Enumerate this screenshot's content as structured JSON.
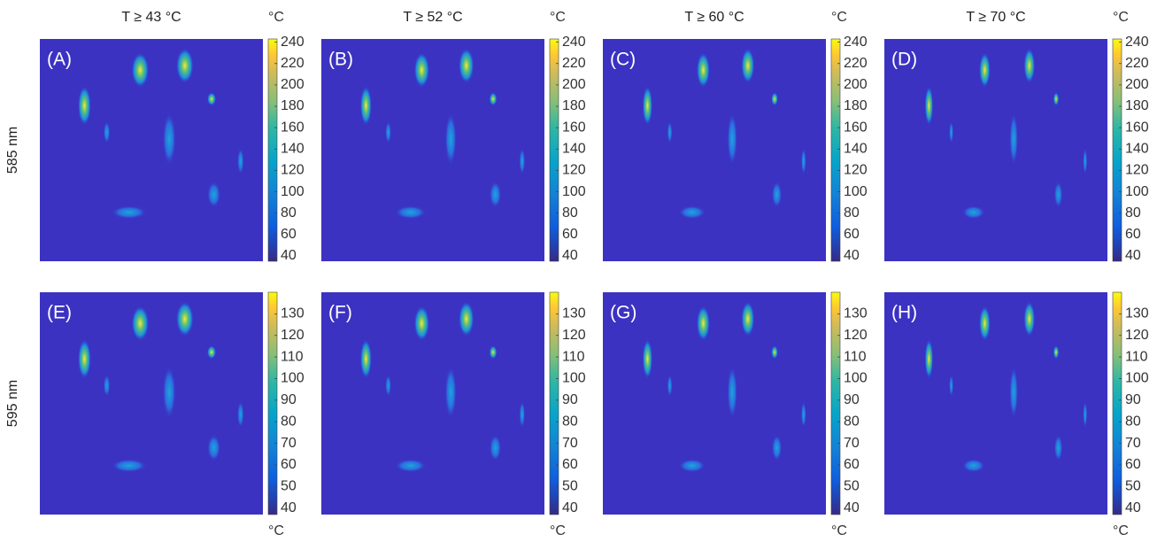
{
  "chart_data": [
    {
      "type": "heatmap",
      "title": "T ≥ 43 °C",
      "ylabel": "585 nm",
      "panel_label": "(A)",
      "colorbar": {
        "label": "°C",
        "lim": [
          35,
          243
        ],
        "ticks": [
          40,
          60,
          80,
          100,
          120,
          140,
          160,
          180,
          200,
          220,
          240
        ]
      }
    },
    {
      "type": "heatmap",
      "title": "T ≥ 52 °C",
      "panel_label": "(B)",
      "colorbar": {
        "label": "°C",
        "lim": [
          35,
          243
        ],
        "ticks": [
          40,
          60,
          80,
          100,
          120,
          140,
          160,
          180,
          200,
          220,
          240
        ]
      }
    },
    {
      "type": "heatmap",
      "title": "T ≥ 60 °C",
      "panel_label": "(C)",
      "colorbar": {
        "label": "°C",
        "lim": [
          35,
          243
        ],
        "ticks": [
          40,
          60,
          80,
          100,
          120,
          140,
          160,
          180,
          200,
          220,
          240
        ]
      }
    },
    {
      "type": "heatmap",
      "title": "T ≥ 70 °C",
      "panel_label": "(D)",
      "colorbar": {
        "label": "°C",
        "lim": [
          35,
          243
        ],
        "ticks": [
          40,
          60,
          80,
          100,
          120,
          140,
          160,
          180,
          200,
          220,
          240
        ]
      }
    },
    {
      "type": "heatmap",
      "ylabel": "595 nm",
      "panel_label": "(E)",
      "colorbar": {
        "label": "°C",
        "lim": [
          37,
          140
        ],
        "ticks": [
          40,
          50,
          60,
          70,
          80,
          90,
          100,
          110,
          120,
          130
        ]
      }
    },
    {
      "type": "heatmap",
      "panel_label": "(F)",
      "colorbar": {
        "label": "°C",
        "lim": [
          37,
          140
        ],
        "ticks": [
          40,
          50,
          60,
          70,
          80,
          90,
          100,
          110,
          120,
          130
        ]
      }
    },
    {
      "type": "heatmap",
      "panel_label": "(G)",
      "colorbar": {
        "label": "°C",
        "lim": [
          37,
          140
        ],
        "ticks": [
          40,
          50,
          60,
          70,
          80,
          90,
          100,
          110,
          120,
          130
        ]
      }
    },
    {
      "type": "heatmap",
      "panel_label": "(H)",
      "colorbar": {
        "label": "°C",
        "lim": [
          37,
          140
        ],
        "ticks": [
          40,
          50,
          60,
          70,
          80,
          90,
          100,
          110,
          120,
          130
        ]
      }
    }
  ]
}
